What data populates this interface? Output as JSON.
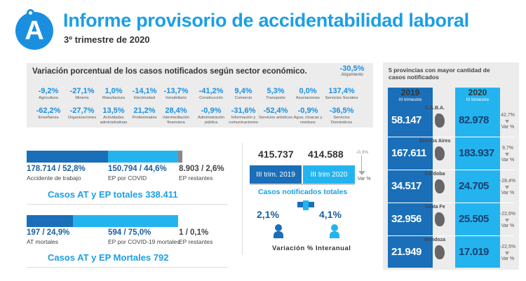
{
  "header": {
    "logo_letter": "A",
    "title": "Informe provisorio de accidentabilidad laboral",
    "subtitle": "3º trimestre de 2020"
  },
  "colors": {
    "primary_blue": "#1a8fe0",
    "light_blue": "#23b4f0",
    "dark_blue": "#1a6fb8",
    "gray_bar": "#888888",
    "panel_gray": "#ececec"
  },
  "sectors": {
    "heading": "Variación porcentual de los casos notificados según sector económico.",
    "alone": {
      "value": "-30,5%",
      "label": "Alojamiento"
    },
    "row1": [
      {
        "value": "-9,2%",
        "label": "Agricultura"
      },
      {
        "value": "-27,1%",
        "label": "Minería"
      },
      {
        "value": "1,0%",
        "label": "Manufactura"
      },
      {
        "value": "-14,1%",
        "label": "Electricidad"
      },
      {
        "value": "-13,7%",
        "label": "Inmobiliario"
      },
      {
        "value": "-41,2%",
        "label": "Construcción"
      },
      {
        "value": "9,4%",
        "label": "Comercio"
      },
      {
        "value": "5,3%",
        "label": "Transporte"
      },
      {
        "value": "0,0%",
        "label": "Asociaciones"
      },
      {
        "value": "137,4%",
        "label": "Servicios Sociales"
      }
    ],
    "row2": [
      {
        "value": "-62,2%",
        "label": "Enseñanza"
      },
      {
        "value": "-27,7%",
        "label": "Organizaciones"
      },
      {
        "value": "13,5%",
        "label": "Actividades administrativas"
      },
      {
        "value": "21,2%",
        "label": "Profesionales"
      },
      {
        "value": "28,4%",
        "label": "Intermediación financiera"
      },
      {
        "value": "-0,9%",
        "label": "Administración pública"
      },
      {
        "value": "-31,6%",
        "label": "Información y comunicaciones"
      },
      {
        "value": "-52,4%",
        "label": "Servicios artísticos"
      },
      {
        "value": "-0,9%",
        "label": "Agua, cloacas y residuos"
      },
      {
        "value": "-36,5%",
        "label": "Servicios Domésticos"
      }
    ]
  },
  "totals_at_ep": {
    "accidente": {
      "value": "178.714 / 52,8%",
      "label": "Accidente de trabajo",
      "share": 0.528
    },
    "covid": {
      "value": "150.794 / 44,6%",
      "label": "EP por COVID",
      "share": 0.446
    },
    "restantes": {
      "value": "8.903 / 2,6%",
      "label": "EP restantes",
      "share": 0.026
    },
    "total_line": "Casos AT y EP totales  338.411"
  },
  "totals_mortales": {
    "at": {
      "value": "197 / 24,9%",
      "label": "AT mortales",
      "share": 0.249
    },
    "covid": {
      "value": "594 / 75,0%",
      "label": "EP por COVID-19 mortales",
      "share": 0.75
    },
    "restantes": {
      "value": "1 / 0,1%",
      "label": "EP restantes",
      "share": 0.001
    },
    "total_line": "Casos AT y EP Mortales  792"
  },
  "trimestres": {
    "value_2019": "415.737",
    "value_2020": "414.588",
    "label_2019": "III trim. 2019",
    "label_2020": "III trim 2020",
    "var_pct": "-0,3%",
    "var_label": "Var %",
    "notif_title": "Casos notificados totales",
    "pct_left": "2,1%",
    "pct_right": "4,1%",
    "interanual": "Variación %  Interanual"
  },
  "provincias": {
    "heading": "5 provincias con mayor cantidad de casos notificados",
    "col_2019": {
      "year": "2019",
      "sub": "III trimestre"
    },
    "col_2020": {
      "year": "2020",
      "sub": "III trimestre"
    },
    "var_label": "Var %",
    "rows": [
      {
        "name": "C.A.B.A.",
        "v2019": "58.147",
        "v2020": "82.978",
        "var": "42,7%"
      },
      {
        "name": "Buenos Aires",
        "v2019": "167.611",
        "v2020": "183.937",
        "var": "9,7%"
      },
      {
        "name": "Córdoba",
        "v2019": "34.517",
        "v2020": "24.705",
        "var": "-28,4%"
      },
      {
        "name": "Santa Fe",
        "v2019": "32.956",
        "v2020": "25.505",
        "var": "-22,6%"
      },
      {
        "name": "Mendoza",
        "v2019": "21.949",
        "v2020": "17.019",
        "var": "-22,5%"
      }
    ]
  }
}
